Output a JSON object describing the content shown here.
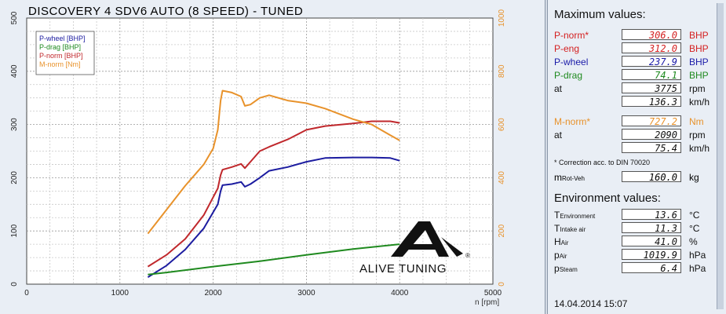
{
  "chart_data": {
    "type": "line",
    "title": "DISCOVERY 4 SDV6 AUTO (8 SPEED) - TUNED",
    "xlabel": "n [rpm]",
    "xlim": [
      0,
      5000
    ],
    "xticks": [
      "0",
      "1000",
      "2000",
      "3000",
      "4000",
      "5000"
    ],
    "ylim_left": [
      0,
      500
    ],
    "yticks_left": [
      "0",
      "100",
      "200",
      "300",
      "400",
      "500"
    ],
    "ylim_right": [
      0,
      1000
    ],
    "yticks_right": [
      "0",
      "200",
      "400",
      "600",
      "800",
      "1000"
    ],
    "grid": true,
    "legend_position": "top-left",
    "series": [
      {
        "name": "P-wheel [BHP]",
        "axis": "left",
        "color": "#1c1ca0",
        "points": [
          [
            1300,
            13
          ],
          [
            1500,
            35
          ],
          [
            1700,
            65
          ],
          [
            1900,
            105
          ],
          [
            2050,
            150
          ],
          [
            2080,
            175
          ],
          [
            2100,
            186
          ],
          [
            2200,
            188
          ],
          [
            2300,
            192
          ],
          [
            2340,
            183
          ],
          [
            2400,
            188
          ],
          [
            2500,
            200
          ],
          [
            2600,
            213
          ],
          [
            2800,
            220
          ],
          [
            3000,
            230
          ],
          [
            3200,
            237
          ],
          [
            3500,
            238
          ],
          [
            3700,
            238
          ],
          [
            3900,
            237
          ],
          [
            4000,
            232
          ]
        ]
      },
      {
        "name": "P-drag [BHP]",
        "axis": "left",
        "color": "#1f8a1f",
        "points": [
          [
            1300,
            18
          ],
          [
            1500,
            22
          ],
          [
            2000,
            33
          ],
          [
            2500,
            43
          ],
          [
            3000,
            55
          ],
          [
            3500,
            66
          ],
          [
            4000,
            75
          ]
        ]
      },
      {
        "name": "P-norm [BHP]",
        "axis": "left",
        "color": "#c0282c",
        "points": [
          [
            1300,
            33
          ],
          [
            1500,
            55
          ],
          [
            1700,
            85
          ],
          [
            1900,
            130
          ],
          [
            2050,
            180
          ],
          [
            2080,
            205
          ],
          [
            2100,
            215
          ],
          [
            2200,
            220
          ],
          [
            2300,
            226
          ],
          [
            2340,
            218
          ],
          [
            2400,
            230
          ],
          [
            2500,
            250
          ],
          [
            2600,
            258
          ],
          [
            2800,
            272
          ],
          [
            3000,
            290
          ],
          [
            3200,
            297
          ],
          [
            3500,
            302
          ],
          [
            3700,
            306
          ],
          [
            3900,
            306
          ],
          [
            4000,
            303
          ]
        ]
      },
      {
        "name": "M-norm [Nm]",
        "axis": "right",
        "color": "#e8922b",
        "points": [
          [
            1300,
            190
          ],
          [
            1500,
            280
          ],
          [
            1700,
            370
          ],
          [
            1900,
            450
          ],
          [
            2000,
            510
          ],
          [
            2050,
            580
          ],
          [
            2080,
            690
          ],
          [
            2100,
            727
          ],
          [
            2200,
            720
          ],
          [
            2300,
            705
          ],
          [
            2340,
            670
          ],
          [
            2400,
            675
          ],
          [
            2500,
            700
          ],
          [
            2600,
            710
          ],
          [
            2800,
            690
          ],
          [
            3000,
            680
          ],
          [
            3200,
            660
          ],
          [
            3500,
            620
          ],
          [
            3700,
            600
          ],
          [
            3900,
            560
          ],
          [
            4000,
            540
          ]
        ]
      }
    ]
  },
  "watermark": {
    "text": "ALIVE TUNING",
    "mark": "®"
  },
  "panel": {
    "max_title": "Maximum values:",
    "rows": [
      {
        "label": "P-norm*",
        "value": "306.0",
        "unit": "BHP",
        "color": "#d42020"
      },
      {
        "label": "P-eng",
        "value": "312.0",
        "unit": "BHP",
        "color": "#d42020"
      },
      {
        "label": "P-wheel",
        "value": "237.9",
        "unit": "BHP",
        "color": "#1a1aa8"
      },
      {
        "label": "P-drag",
        "value": "74.1",
        "unit": "BHP",
        "color": "#1f8a1f"
      },
      {
        "label": "at",
        "value": "3775",
        "unit": "rpm",
        "color": "#111111"
      },
      {
        "label": "",
        "value": "136.3",
        "unit": "km/h",
        "color": "#111111"
      },
      {
        "label": "M-norm*",
        "value": "727.2",
        "unit": "Nm",
        "color": "#e8922b"
      },
      {
        "label": "at",
        "value": "2090",
        "unit": "rpm",
        "color": "#111111"
      },
      {
        "label": "",
        "value": "75.4",
        "unit": "km/h",
        "color": "#111111"
      }
    ],
    "correction": "* Correction acc. to DIN 70020",
    "mrot": {
      "label": "m",
      "sub": "Rot-Veh",
      "value": "160.0",
      "unit": "kg"
    },
    "env_title": "Environment values:",
    "env": [
      {
        "label": "T",
        "sub": "Environment",
        "value": "13.6",
        "unit": "°C"
      },
      {
        "label": "T",
        "sub": "Intake air",
        "value": "11.3",
        "unit": "°C"
      },
      {
        "label": "H",
        "sub": "Air",
        "value": "41.0",
        "unit": "%"
      },
      {
        "label": "p",
        "sub": "Air",
        "value": "1019.9",
        "unit": "hPa"
      },
      {
        "label": "p",
        "sub": "Steam",
        "value": "6.4",
        "unit": "hPa"
      }
    ],
    "datetime": "14.04.2014  15:07"
  }
}
